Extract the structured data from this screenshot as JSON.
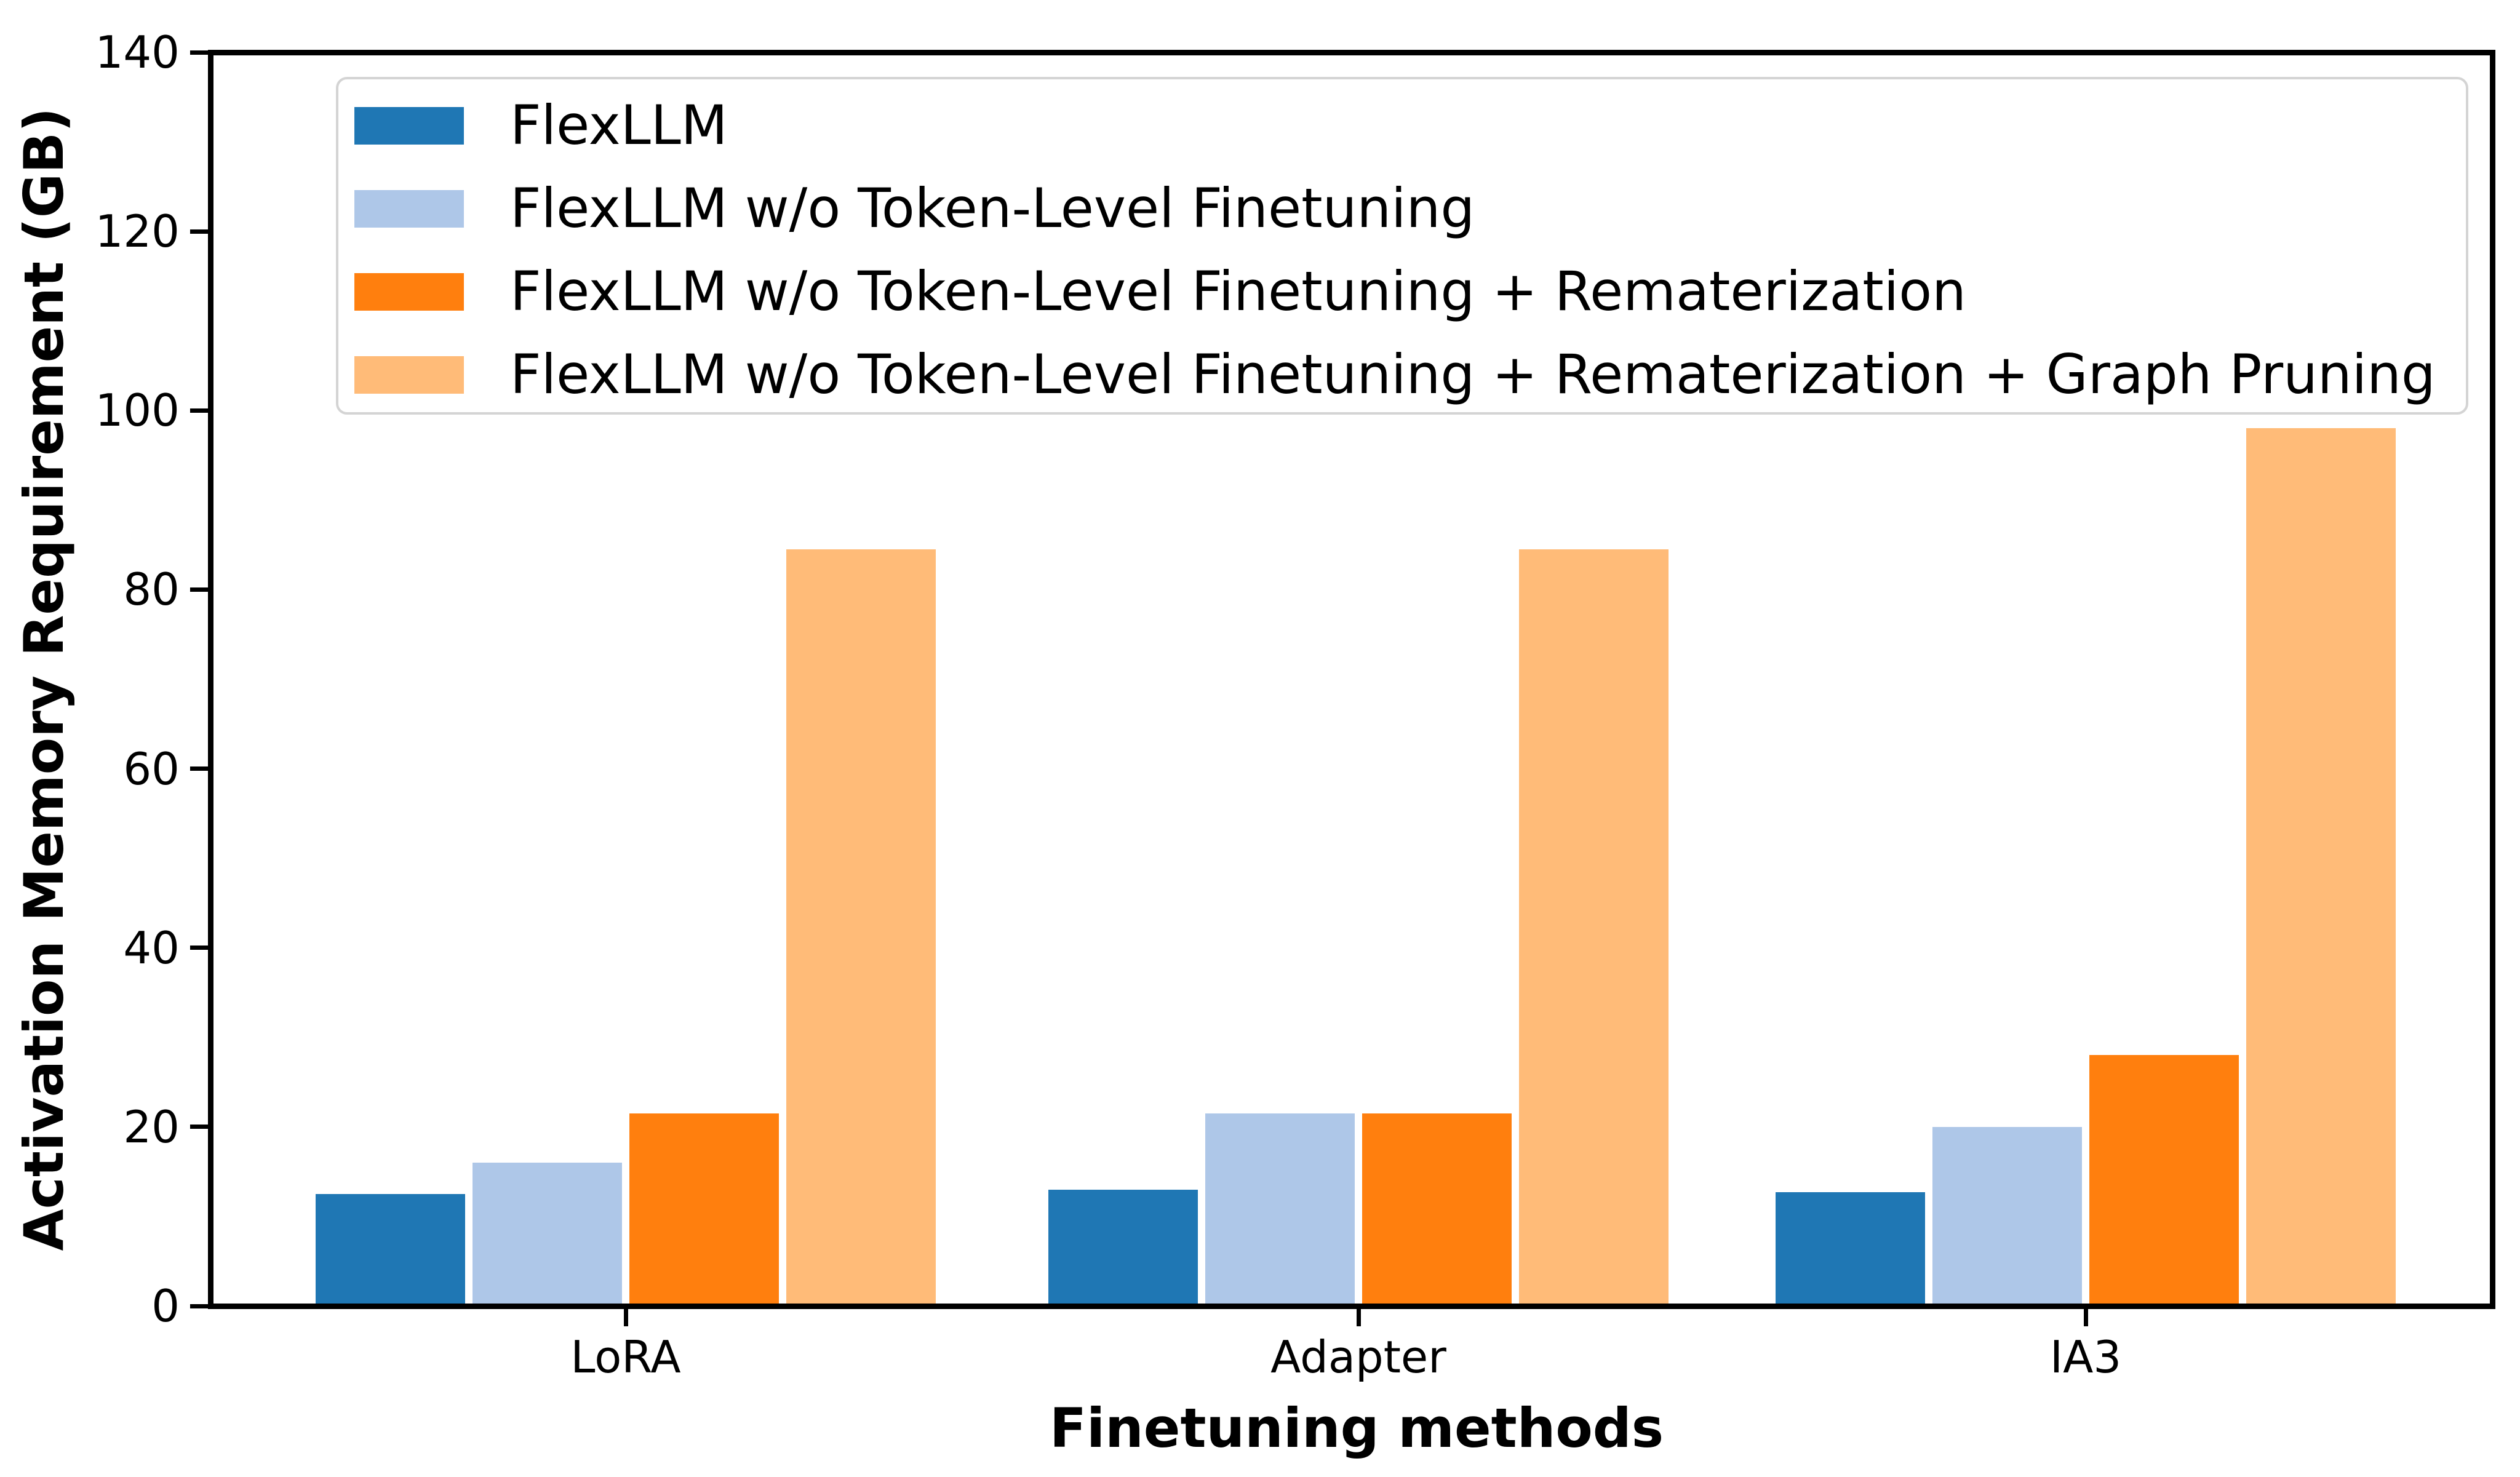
{
  "chart_data": {
    "type": "bar",
    "title": "",
    "xlabel": "Finetuning methods",
    "ylabel": "Activation Memory Requirement (GB)",
    "categories": [
      "LoRA",
      "Adapter",
      "IA3"
    ],
    "series": [
      {
        "name": "FlexLLM",
        "color": "#1f77b4",
        "values": [
          12.5,
          13.0,
          12.7
        ]
      },
      {
        "name": "FlexLLM w/o Token-Level Finetuning",
        "color": "#aec7e8",
        "values": [
          16.0,
          21.5,
          20.0
        ]
      },
      {
        "name": "FlexLLM w/o Token-Level Finetuning + Rematerization",
        "color": "#ff7f0e",
        "values": [
          21.5,
          21.5,
          28.0
        ]
      },
      {
        "name": "FlexLLM w/o Token-Level Finetuning + Rematerization + Graph Pruning",
        "color": "#ffbb78",
        "values": [
          84.5,
          84.5,
          98.0
        ]
      }
    ],
    "ylim": [
      0,
      140
    ],
    "yticks": [
      0,
      20,
      40,
      60,
      80,
      100,
      120,
      140
    ],
    "grid": false,
    "legend_position": "upper left",
    "axis_color": "#000000",
    "background_color": "#ffffff"
  }
}
